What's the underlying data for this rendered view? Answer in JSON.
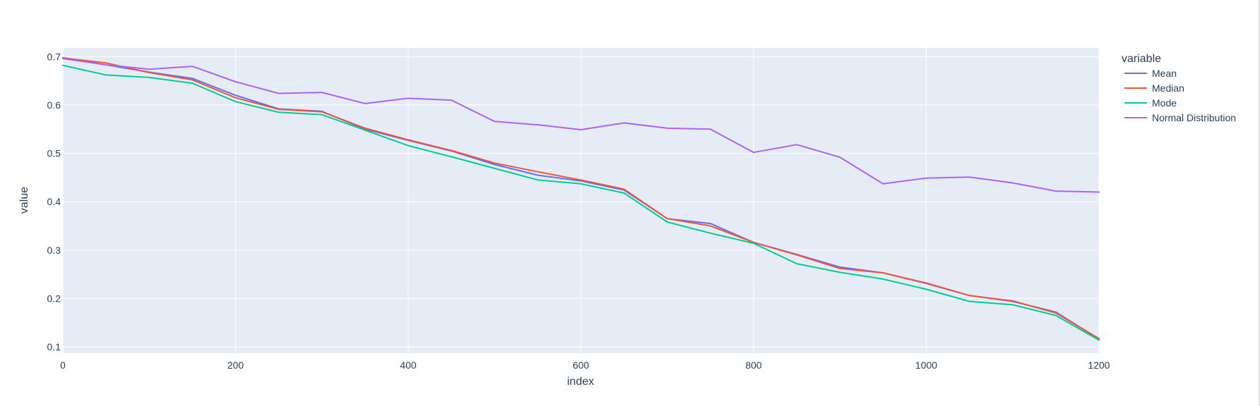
{
  "chart_data": {
    "type": "line",
    "xlabel": "index",
    "ylabel": "value",
    "xlim": [
      0,
      1200
    ],
    "ylim": [
      0.087,
      0.718
    ],
    "x_ticks": [
      0,
      200,
      400,
      600,
      800,
      1000,
      1200
    ],
    "y_ticks": [
      0.1,
      0.2,
      0.3,
      0.4,
      0.5,
      0.6,
      0.7
    ],
    "grid": true,
    "legend_title": "variable",
    "legend_position": "right",
    "x": [
      0,
      50,
      100,
      150,
      200,
      250,
      300,
      350,
      400,
      450,
      500,
      550,
      600,
      650,
      700,
      750,
      800,
      850,
      900,
      950,
      1000,
      1050,
      1100,
      1150,
      1200
    ],
    "series": [
      {
        "name": "Mean",
        "color": "#636efa",
        "values": [
          0.698,
          0.683,
          0.668,
          0.655,
          0.62,
          0.592,
          0.587,
          0.55,
          0.527,
          0.505,
          0.477,
          0.455,
          0.443,
          0.424,
          0.365,
          0.355,
          0.316,
          0.291,
          0.265,
          0.253,
          0.231,
          0.206,
          0.194,
          0.172,
          0.116
        ]
      },
      {
        "name": "Median",
        "color": "#EF553B",
        "values": [
          0.697,
          0.687,
          0.667,
          0.652,
          0.615,
          0.591,
          0.586,
          0.552,
          0.528,
          0.506,
          0.48,
          0.462,
          0.445,
          0.426,
          0.365,
          0.35,
          0.316,
          0.29,
          0.262,
          0.253,
          0.232,
          0.206,
          0.195,
          0.17,
          0.117
        ]
      },
      {
        "name": "Mode",
        "color": "#00cc96",
        "values": [
          0.682,
          0.662,
          0.657,
          0.645,
          0.607,
          0.585,
          0.58,
          0.548,
          0.516,
          0.493,
          0.469,
          0.445,
          0.437,
          0.418,
          0.358,
          0.335,
          0.314,
          0.272,
          0.254,
          0.24,
          0.219,
          0.194,
          0.187,
          0.165,
          0.114
        ]
      },
      {
        "name": "Normal Distribution",
        "color": "#ab63fa",
        "values": [
          0.696,
          0.683,
          0.674,
          0.68,
          0.648,
          0.624,
          0.626,
          0.603,
          0.614,
          0.61,
          0.566,
          0.559,
          0.549,
          0.563,
          0.552,
          0.55,
          0.502,
          0.518,
          0.492,
          0.437,
          0.449,
          0.451,
          0.439,
          0.422,
          0.42
        ]
      }
    ]
  }
}
